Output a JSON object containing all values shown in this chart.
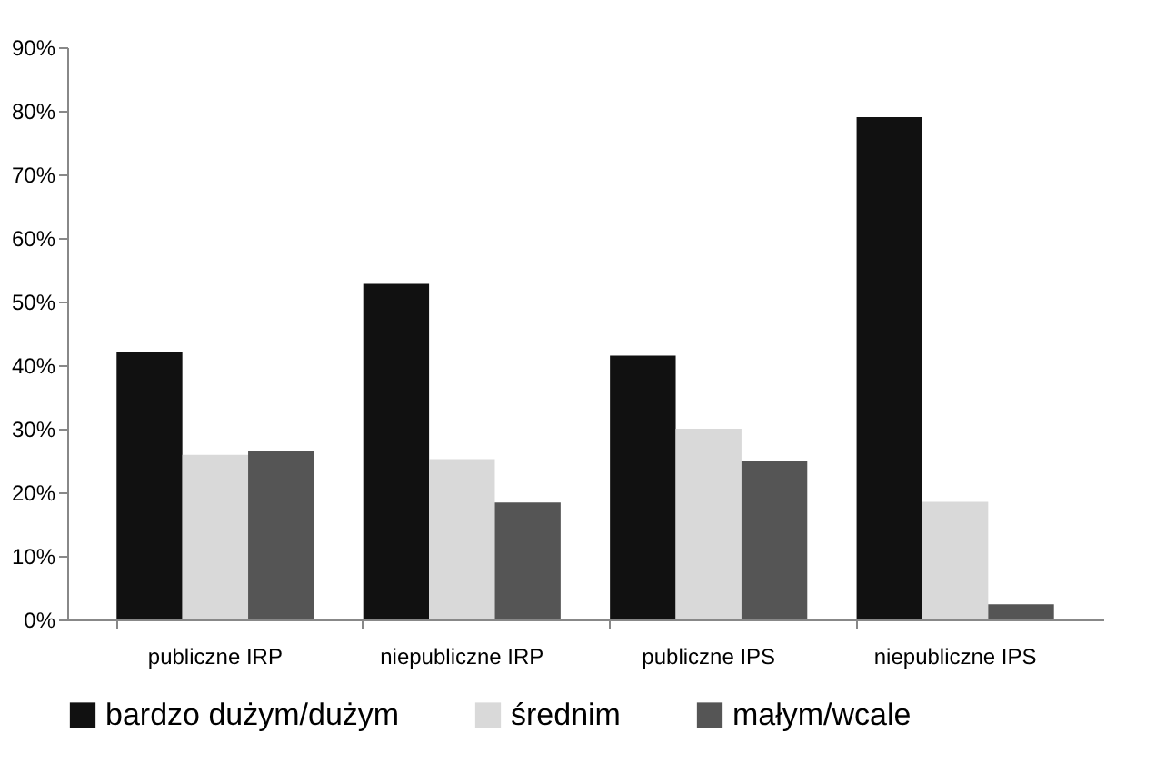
{
  "chart_data": {
    "type": "bar",
    "categories": [
      "publiczne IRP",
      "niepubliczne IRP",
      "publiczne IPS",
      "niepubliczne IPS"
    ],
    "series": [
      {
        "name": "bardzo dużym/dużym",
        "color": "#111111",
        "values": [
          42.0,
          52.8,
          41.5,
          79.0
        ]
      },
      {
        "name": "średnim",
        "color": "#d9d9d9",
        "values": [
          25.9,
          25.2,
          30.0,
          18.5
        ]
      },
      {
        "name": "małym/wcale",
        "color": "#555555",
        "values": [
          26.5,
          18.4,
          24.9,
          2.4
        ]
      }
    ],
    "ylim": [
      0,
      90
    ],
    "yticks": [
      {
        "value": 0,
        "label": "0%"
      },
      {
        "value": 10,
        "label": "10%"
      },
      {
        "value": 20,
        "label": "20%"
      },
      {
        "value": 30,
        "label": "30%"
      },
      {
        "value": 40,
        "label": "40%"
      },
      {
        "value": 50,
        "label": "50%"
      },
      {
        "value": 60,
        "label": "60%"
      },
      {
        "value": 70,
        "label": "70%"
      },
      {
        "value": 80,
        "label": "80%"
      },
      {
        "value": 90,
        "label": "90%"
      }
    ],
    "grid": false,
    "legend": "bottom"
  }
}
